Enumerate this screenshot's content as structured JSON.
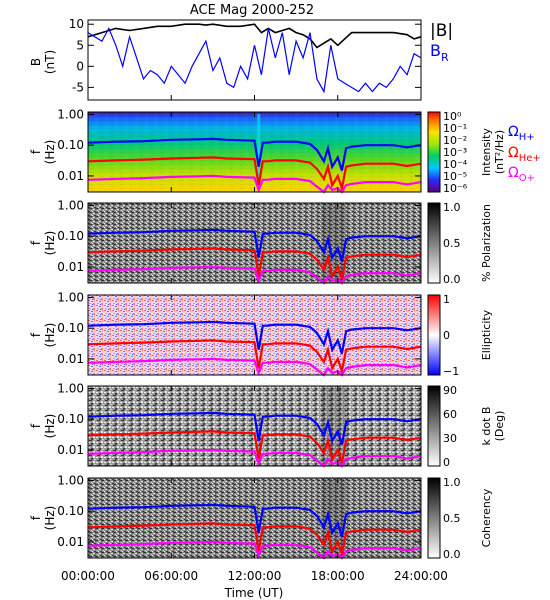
{
  "chart_data": [
    {
      "type": "line",
      "title": "ACE Mag 2000-252",
      "ylabel": "B",
      "yunit": "(nT)",
      "ylim": [
        -8,
        11
      ],
      "yticks": [
        "10",
        "5",
        "0",
        "-5"
      ],
      "ytick_values": [
        10,
        5,
        0,
        -5
      ],
      "xlim": [
        0,
        24
      ],
      "legend": [
        {
          "label": "|B|",
          "color": "#000000"
        },
        {
          "label": "B",
          "sub": "R",
          "color": "#0000ff"
        }
      ],
      "series": [
        {
          "name": "|B|",
          "color": "#000000",
          "x": [
            0,
            1,
            1.5,
            2,
            3,
            4,
            5,
            6,
            7,
            8,
            8.5,
            9,
            10,
            11,
            12,
            12.5,
            13,
            13.5,
            14,
            14.5,
            15,
            15.5,
            16,
            16.5,
            17,
            17.5,
            18,
            18.5,
            19,
            20,
            21,
            22,
            23,
            23.5,
            24
          ],
          "y": [
            7,
            8,
            8.5,
            9,
            8.5,
            9,
            9.5,
            9.5,
            10,
            10,
            9.8,
            10,
            9.5,
            9.5,
            10,
            8,
            9,
            8,
            8.5,
            9,
            8,
            7.5,
            6.5,
            4.5,
            5.5,
            6.5,
            5,
            6.5,
            8,
            8,
            8,
            8,
            7.5,
            6.5,
            7
          ]
        },
        {
          "name": "B",
          "sub": "R",
          "color": "#0000ff",
          "x": [
            0,
            1,
            1.5,
            2,
            2.5,
            3,
            3.5,
            4,
            4.5,
            5,
            5.5,
            6,
            7,
            7.5,
            8,
            8.5,
            9,
            9.5,
            10,
            10.5,
            11,
            11.5,
            12,
            12.5,
            13,
            13.5,
            14,
            14.5,
            15,
            15.5,
            16,
            16.5,
            17,
            17.5,
            18,
            18.5,
            19,
            19.5,
            20,
            20.5,
            21,
            21.5,
            22,
            22.5,
            23,
            23.5,
            24
          ],
          "y": [
            8,
            6,
            9,
            5,
            0,
            7,
            2,
            -3,
            -1,
            -2,
            -4,
            0,
            -4,
            0,
            3,
            6,
            -1,
            2,
            -4,
            -5,
            0,
            -3,
            5,
            -2,
            9,
            2,
            8,
            -2,
            6,
            2,
            8,
            -3,
            -6,
            5,
            -3,
            -4,
            -5,
            -6,
            -4,
            -6,
            -4,
            -5,
            -3,
            0,
            -2,
            3,
            2
          ]
        }
      ]
    },
    {
      "type": "heatmap",
      "ylabel": "f",
      "yunit": "(Hz)",
      "yticks": [
        "1.00",
        "0.10",
        "0.01"
      ],
      "ytick_values": [
        1.0,
        0.1,
        0.01
      ],
      "ylim": [
        0.003,
        1.2
      ],
      "yscale": "log",
      "colorbar_label": "Intensity",
      "colorbar_unit": "(nT²/Hz)",
      "colorbar_ticks": [
        "10⁰",
        "10⁻¹",
        "10⁻²",
        "10⁻³",
        "10⁻⁴",
        "10⁻⁵",
        "10⁻⁶"
      ],
      "colormap": "rainbow",
      "legend": [
        {
          "label": "Ω",
          "sub": "H+",
          "color": "#0000ff"
        },
        {
          "label": "Ω",
          "sub": "He+",
          "color": "#ff0000"
        },
        {
          "label": "Ω",
          "sub": "O+",
          "color": "#ff00ff"
        }
      ]
    },
    {
      "type": "heatmap",
      "ylabel": "f",
      "yunit": "(Hz)",
      "yticks": [
        "1.00",
        "0.10",
        "0.01"
      ],
      "ytick_values": [
        1.0,
        0.1,
        0.01
      ],
      "yscale": "log",
      "colorbar_label": "% Polarization",
      "colorbar_ticks": [
        "1.0",
        "0.5",
        "0.0"
      ],
      "colormap": "gray"
    },
    {
      "type": "heatmap",
      "ylabel": "f",
      "yunit": "(Hz)",
      "yticks": [
        "1.00",
        "0.10",
        "0.01"
      ],
      "ytick_values": [
        1.0,
        0.1,
        0.01
      ],
      "yscale": "log",
      "colorbar_label": "Ellipticity",
      "colorbar_ticks": [
        "1",
        "0",
        "−1"
      ],
      "colormap": "blue-white-red"
    },
    {
      "type": "heatmap",
      "ylabel": "f",
      "yunit": "(Hz)",
      "yticks": [
        "1.00",
        "0.10",
        "0.01"
      ],
      "ytick_values": [
        1.0,
        0.1,
        0.01
      ],
      "yscale": "log",
      "colorbar_label": "k dot B",
      "colorbar_unit": "(Deg)",
      "colorbar_ticks": [
        "90",
        "60",
        "30",
        "0"
      ],
      "colormap": "gray"
    },
    {
      "type": "heatmap",
      "ylabel": "f",
      "yunit": "(Hz)",
      "yticks": [
        "1.00",
        "0.10",
        "0.01"
      ],
      "ytick_values": [
        1.0,
        0.1,
        0.01
      ],
      "yscale": "log",
      "colorbar_label": "Coherency",
      "colorbar_ticks": [
        "1.0",
        "0.5",
        "0.0"
      ],
      "colormap": "gray"
    }
  ],
  "gyrofrequencies": {
    "x": [
      0,
      2,
      4,
      6,
      8,
      9,
      10,
      12,
      12.3,
      12.6,
      12.9,
      13.5,
      15,
      16,
      16.5,
      17,
      17.3,
      17.6,
      18,
      18.3,
      18.6,
      19,
      20,
      21,
      22,
      23,
      24
    ],
    "H+": [
      0.12,
      0.13,
      0.135,
      0.15,
      0.155,
      0.16,
      0.15,
      0.14,
      0.02,
      0.12,
      0.12,
      0.13,
      0.13,
      0.11,
      0.07,
      0.03,
      0.08,
      0.02,
      0.04,
      0.015,
      0.08,
      0.09,
      0.1,
      0.1,
      0.1,
      0.085,
      0.1
    ],
    "He+": [
      0.03,
      0.032,
      0.034,
      0.037,
      0.039,
      0.04,
      0.037,
      0.035,
      0.005,
      0.03,
      0.03,
      0.032,
      0.032,
      0.027,
      0.017,
      0.008,
      0.02,
      0.005,
      0.01,
      0.004,
      0.02,
      0.022,
      0.025,
      0.025,
      0.025,
      0.021,
      0.025
    ],
    "O+": [
      0.0075,
      0.008,
      0.0085,
      0.0093,
      0.0097,
      0.01,
      0.0093,
      0.0088,
      0.0035,
      0.0075,
      0.0075,
      0.008,
      0.008,
      0.0068,
      0.0045,
      0.003,
      0.005,
      0.0035,
      0.004,
      0.003,
      0.005,
      0.0055,
      0.0063,
      0.0063,
      0.0063,
      0.0053,
      0.0063
    ]
  },
  "xaxis": {
    "label": "Time (UT)",
    "ticks": [
      "00:00:00",
      "06:00:00",
      "12:00:00",
      "18:00:00",
      "24:00:00"
    ],
    "tick_values": [
      0,
      6,
      12,
      18,
      24
    ]
  },
  "colors": {
    "hplus": "#0000ff",
    "heplus": "#ff0000",
    "oplus": "#ff00ff",
    "bmag": "#000000",
    "br": "#0000ff"
  }
}
